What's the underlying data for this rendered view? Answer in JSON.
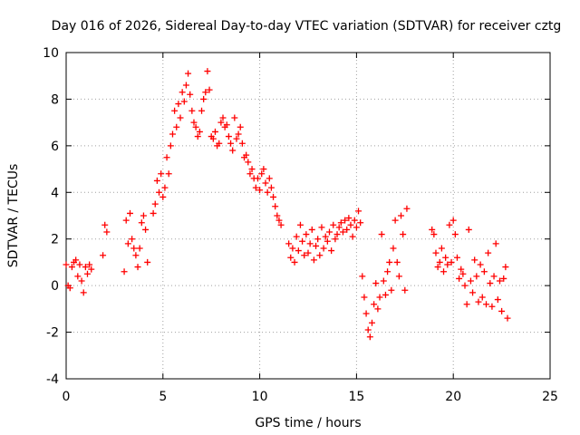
{
  "chart_data": {
    "type": "scatter",
    "title": "Day 016 of 2026, Sidereal Day-to-day VTEC variation (SDTVAR) for receiver cztg",
    "xlabel": "GPS time / hours",
    "ylabel": "SDTVAR / TECUs",
    "xlim": [
      0,
      25
    ],
    "ylim": [
      -4,
      10
    ],
    "xticks": [
      "0",
      "5",
      "10",
      "15",
      "20",
      "25"
    ],
    "yticks": [
      "-4",
      "-2",
      "0",
      "2",
      "4",
      "6",
      "8",
      "10"
    ],
    "grid": true,
    "marker": "+",
    "color": "#ff0000",
    "series": [
      {
        "name": "SDTVAR cztg",
        "x": [
          0.0,
          0.1,
          0.2,
          0.3,
          0.4,
          0.5,
          0.6,
          0.7,
          0.8,
          0.9,
          1.0,
          1.1,
          1.2,
          1.3,
          1.9,
          2.0,
          2.1,
          3.0,
          3.1,
          3.2,
          3.3,
          3.4,
          3.5,
          3.6,
          3.7,
          3.8,
          3.9,
          4.0,
          4.1,
          4.2,
          4.5,
          4.6,
          4.7,
          4.8,
          4.9,
          5.0,
          5.1,
          5.2,
          5.3,
          5.4,
          5.5,
          5.6,
          5.7,
          5.8,
          5.9,
          6.0,
          6.1,
          6.2,
          6.3,
          6.4,
          6.5,
          6.6,
          6.7,
          6.8,
          6.9,
          7.0,
          7.1,
          7.2,
          7.3,
          7.4,
          7.5,
          7.6,
          7.7,
          7.8,
          7.9,
          8.0,
          8.1,
          8.2,
          8.3,
          8.4,
          8.5,
          8.6,
          8.7,
          8.8,
          8.9,
          9.0,
          9.1,
          9.2,
          9.3,
          9.4,
          9.5,
          9.6,
          9.7,
          9.8,
          9.9,
          10.0,
          10.1,
          10.2,
          10.3,
          10.4,
          10.5,
          10.6,
          10.7,
          10.8,
          10.9,
          11.0,
          11.1,
          11.5,
          11.6,
          11.7,
          11.8,
          11.9,
          12.0,
          12.1,
          12.2,
          12.3,
          12.4,
          12.5,
          12.6,
          12.7,
          12.8,
          12.9,
          13.0,
          13.1,
          13.2,
          13.3,
          13.4,
          13.5,
          13.6,
          13.7,
          13.8,
          13.9,
          14.0,
          14.1,
          14.2,
          14.3,
          14.4,
          14.5,
          14.6,
          14.7,
          14.8,
          14.9,
          15.0,
          15.1,
          15.2,
          15.3,
          15.4,
          15.5,
          15.6,
          15.7,
          15.8,
          15.9,
          16.0,
          16.1,
          16.2,
          16.3,
          16.4,
          16.5,
          16.6,
          16.7,
          16.8,
          16.9,
          17.0,
          17.1,
          17.2,
          17.3,
          17.4,
          17.5,
          17.6,
          18.9,
          19.0,
          19.1,
          19.2,
          19.3,
          19.4,
          19.5,
          19.6,
          19.7,
          19.8,
          19.9,
          20.0,
          20.1,
          20.2,
          20.3,
          20.4,
          20.5,
          20.6,
          20.7,
          20.8,
          20.9,
          21.0,
          21.1,
          21.2,
          21.3,
          21.4,
          21.5,
          21.6,
          21.7,
          21.8,
          21.9,
          22.0,
          22.1,
          22.2,
          22.3,
          22.4,
          22.5,
          22.6,
          22.7,
          22.8
        ],
        "y": [
          0.9,
          0.0,
          -0.1,
          0.8,
          1.0,
          1.1,
          0.4,
          0.9,
          0.2,
          -0.3,
          0.8,
          0.5,
          0.9,
          0.7,
          1.3,
          2.6,
          2.3,
          0.6,
          2.8,
          1.8,
          3.1,
          2.0,
          1.6,
          1.3,
          0.8,
          1.6,
          2.7,
          3.0,
          2.4,
          1.0,
          3.1,
          3.5,
          4.5,
          4.0,
          4.8,
          3.8,
          4.2,
          5.5,
          4.8,
          6.0,
          6.5,
          7.5,
          6.8,
          7.8,
          7.2,
          8.3,
          7.9,
          8.6,
          9.1,
          8.2,
          7.5,
          7.0,
          6.8,
          6.4,
          6.6,
          7.5,
          8.0,
          8.3,
          9.2,
          8.4,
          6.4,
          6.3,
          6.6,
          6.0,
          6.1,
          7.0,
          7.2,
          6.8,
          6.9,
          6.4,
          6.1,
          5.8,
          7.2,
          6.3,
          6.5,
          6.8,
          6.1,
          5.5,
          5.6,
          5.3,
          4.8,
          5.0,
          4.6,
          4.2,
          4.6,
          4.1,
          4.8,
          5.0,
          4.4,
          4.0,
          4.6,
          4.2,
          3.8,
          3.4,
          3.0,
          2.8,
          2.6,
          1.8,
          1.2,
          1.6,
          1.0,
          2.1,
          1.5,
          2.6,
          1.9,
          1.3,
          2.2,
          1.4,
          1.8,
          2.4,
          1.1,
          1.7,
          2.0,
          1.3,
          2.5,
          1.6,
          2.1,
          1.9,
          2.3,
          1.5,
          2.6,
          2.0,
          2.2,
          2.5,
          2.7,
          2.3,
          2.8,
          2.4,
          2.9,
          2.6,
          2.1,
          2.8,
          2.5,
          3.2,
          2.7,
          0.4,
          -0.5,
          -1.2,
          -1.9,
          -2.2,
          -1.6,
          -0.8,
          0.1,
          -1.0,
          -0.5,
          2.2,
          0.2,
          -0.4,
          0.6,
          1.0,
          -0.2,
          1.6,
          2.8,
          1.0,
          0.4,
          3.0,
          2.2,
          -0.2,
          3.3,
          2.4,
          2.2,
          1.4,
          0.8,
          1.0,
          1.6,
          0.6,
          1.2,
          0.9,
          2.6,
          1.0,
          2.8,
          2.2,
          1.2,
          0.3,
          0.7,
          0.5,
          0.0,
          -0.8,
          2.4,
          0.2,
          -0.3,
          1.1,
          0.4,
          -0.7,
          0.9,
          -0.5,
          0.6,
          -0.8,
          1.4,
          0.1,
          -0.9,
          0.4,
          1.8,
          -0.6,
          0.2,
          -1.1,
          0.3,
          0.8,
          -1.4
        ]
      }
    ]
  }
}
